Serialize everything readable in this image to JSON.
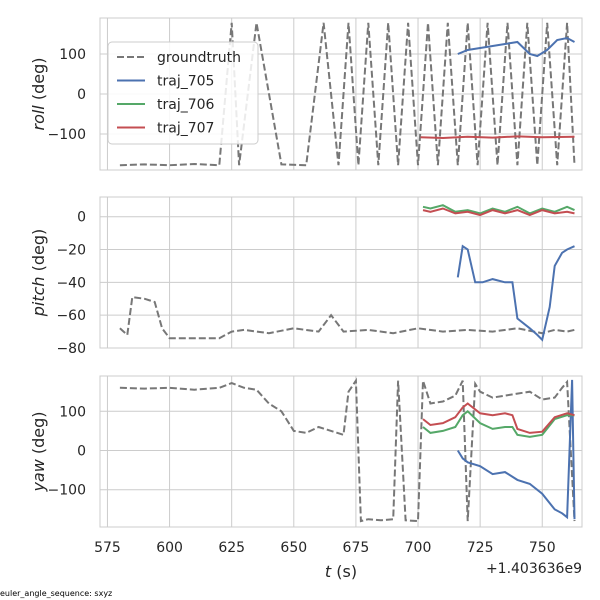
{
  "chart_data": [
    {
      "type": "line",
      "ylabel_italic": "roll",
      "ylabel_unit": " (deg)",
      "ylim": [
        -190,
        190
      ],
      "yticks": [
        100,
        0,
        -100
      ],
      "xlim": [
        572,
        766
      ],
      "grid": true,
      "legend": {
        "position": "upper-left",
        "entries": [
          "groundtruth",
          "traj_705",
          "traj_706",
          "traj_707"
        ]
      },
      "series": [
        {
          "name": "groundtruth",
          "style": "dashed",
          "color": "#777777",
          "x": [
            580,
            590,
            600,
            610,
            620,
            625,
            628,
            635,
            645,
            655,
            662,
            668,
            672,
            676,
            680,
            684,
            688,
            692,
            696,
            700,
            704,
            708,
            712,
            716,
            720,
            724,
            728,
            732,
            736,
            740,
            744,
            748,
            752,
            756,
            760,
            763
          ],
          "y": [
            -178,
            -176,
            -178,
            -175,
            -178,
            178,
            -178,
            178,
            -176,
            -178,
            178,
            -178,
            178,
            -178,
            178,
            -178,
            178,
            -178,
            178,
            -178,
            178,
            -178,
            178,
            -178,
            178,
            -178,
            178,
            -178,
            178,
            -178,
            178,
            -178,
            178,
            -178,
            178,
            -178
          ]
        },
        {
          "name": "traj_705",
          "color": "#4c72b0",
          "x": [
            716,
            720,
            725,
            730,
            735,
            740,
            745,
            748,
            752,
            756,
            760,
            763
          ],
          "y": [
            100,
            110,
            115,
            120,
            125,
            130,
            100,
            95,
            110,
            135,
            140,
            130
          ]
        },
        {
          "name": "traj_706",
          "color": "#55a868",
          "x": [],
          "y": []
        },
        {
          "name": "traj_707",
          "color": "#c44e52",
          "x": [
            701,
            710,
            720,
            730,
            740,
            750,
            763
          ],
          "y": [
            -108,
            -110,
            -107,
            -109,
            -106,
            -108,
            -107
          ]
        }
      ]
    },
    {
      "type": "line",
      "ylabel_italic": "pitch",
      "ylabel_unit": " (deg)",
      "ylim": [
        -80,
        12
      ],
      "yticks": [
        0,
        -20,
        -40,
        -60,
        -80
      ],
      "xlim": [
        572,
        766
      ],
      "grid": true,
      "series": [
        {
          "name": "groundtruth",
          "style": "dashed",
          "color": "#777777",
          "x": [
            580,
            583,
            585,
            590,
            594,
            597,
            600,
            610,
            620,
            625,
            630,
            640,
            650,
            660,
            665,
            670,
            680,
            690,
            700,
            710,
            720,
            730,
            740,
            750,
            755,
            760,
            763
          ],
          "y": [
            -68,
            -72,
            -49,
            -50,
            -52,
            -68,
            -74,
            -74,
            -74,
            -70,
            -69,
            -71,
            -68,
            -70,
            -60,
            -70,
            -69,
            -71,
            -68,
            -70,
            -69,
            -70,
            -68,
            -71,
            -69,
            -70,
            -69
          ]
        },
        {
          "name": "traj_705",
          "color": "#4c72b0",
          "x": [
            716,
            718,
            720,
            723,
            726,
            730,
            735,
            738,
            740,
            745,
            748,
            750,
            753,
            755,
            758,
            760,
            763
          ],
          "y": [
            -37,
            -18,
            -20,
            -40,
            -40,
            -38,
            -40,
            -40,
            -62,
            -68,
            -72,
            -75,
            -55,
            -30,
            -22,
            -20,
            -18
          ]
        },
        {
          "name": "traj_706",
          "color": "#55a868",
          "x": [
            702,
            705,
            710,
            715,
            720,
            725,
            730,
            735,
            740,
            745,
            750,
            755,
            760,
            763
          ],
          "y": [
            6,
            5,
            7,
            3,
            4,
            2,
            5,
            3,
            6,
            2,
            5,
            3,
            6,
            4
          ]
        },
        {
          "name": "traj_707",
          "color": "#c44e52",
          "x": [
            702,
            705,
            710,
            715,
            720,
            725,
            730,
            735,
            740,
            745,
            750,
            755,
            760,
            763
          ],
          "y": [
            4,
            3,
            5,
            2,
            3,
            1,
            4,
            2,
            4,
            1,
            4,
            2,
            3,
            2
          ]
        }
      ]
    },
    {
      "type": "line",
      "ylabel_italic": "yaw",
      "ylabel_unit": " (deg)",
      "ylim": [
        -195,
        190
      ],
      "yticks": [
        100,
        0,
        -100
      ],
      "xlim": [
        572,
        766
      ],
      "xticks": [
        575,
        600,
        625,
        650,
        675,
        700,
        725,
        750
      ],
      "xlabel_italic": "t",
      "xlabel_unit": " (s)",
      "offset": "+1.403636e9",
      "grid": true,
      "series": [
        {
          "name": "groundtruth",
          "style": "dashed",
          "color": "#777777",
          "x": [
            580,
            590,
            600,
            610,
            620,
            625,
            630,
            635,
            640,
            645,
            650,
            655,
            660,
            665,
            670,
            672,
            675,
            677,
            680,
            685,
            690,
            692,
            695,
            700,
            702,
            705,
            710,
            715,
            718,
            720,
            723,
            725,
            730,
            735,
            740,
            745,
            750,
            755,
            758,
            760,
            763
          ],
          "y": [
            160,
            158,
            160,
            155,
            160,
            172,
            160,
            155,
            120,
            100,
            50,
            45,
            60,
            50,
            40,
            150,
            178,
            -180,
            -175,
            -178,
            -175,
            178,
            -178,
            -180,
            178,
            120,
            125,
            140,
            178,
            -180,
            170,
            150,
            135,
            140,
            145,
            150,
            130,
            135,
            160,
            175,
            -180
          ]
        },
        {
          "name": "traj_705",
          "color": "#4c72b0",
          "x": [
            716,
            718,
            720,
            725,
            730,
            735,
            740,
            745,
            750,
            755,
            758,
            760,
            762,
            763
          ],
          "y": [
            0,
            -20,
            -30,
            -40,
            -60,
            -55,
            -75,
            -85,
            -110,
            -150,
            -160,
            -170,
            180,
            -175
          ]
        },
        {
          "name": "traj_706",
          "color": "#55a868",
          "x": [
            702,
            705,
            710,
            715,
            718,
            720,
            725,
            730,
            735,
            738,
            740,
            745,
            750,
            755,
            760,
            763
          ],
          "y": [
            60,
            45,
            50,
            60,
            90,
            100,
            70,
            55,
            60,
            60,
            40,
            35,
            40,
            80,
            90,
            90
          ]
        },
        {
          "name": "traj_707",
          "color": "#c44e52",
          "x": [
            702,
            705,
            710,
            715,
            718,
            720,
            725,
            730,
            735,
            738,
            740,
            745,
            750,
            755,
            760,
            763
          ],
          "y": [
            80,
            65,
            70,
            85,
            110,
            120,
            95,
            90,
            95,
            90,
            55,
            45,
            48,
            85,
            95,
            90
          ]
        }
      ]
    }
  ],
  "footnote": "euler_angle_sequence: sxyz"
}
